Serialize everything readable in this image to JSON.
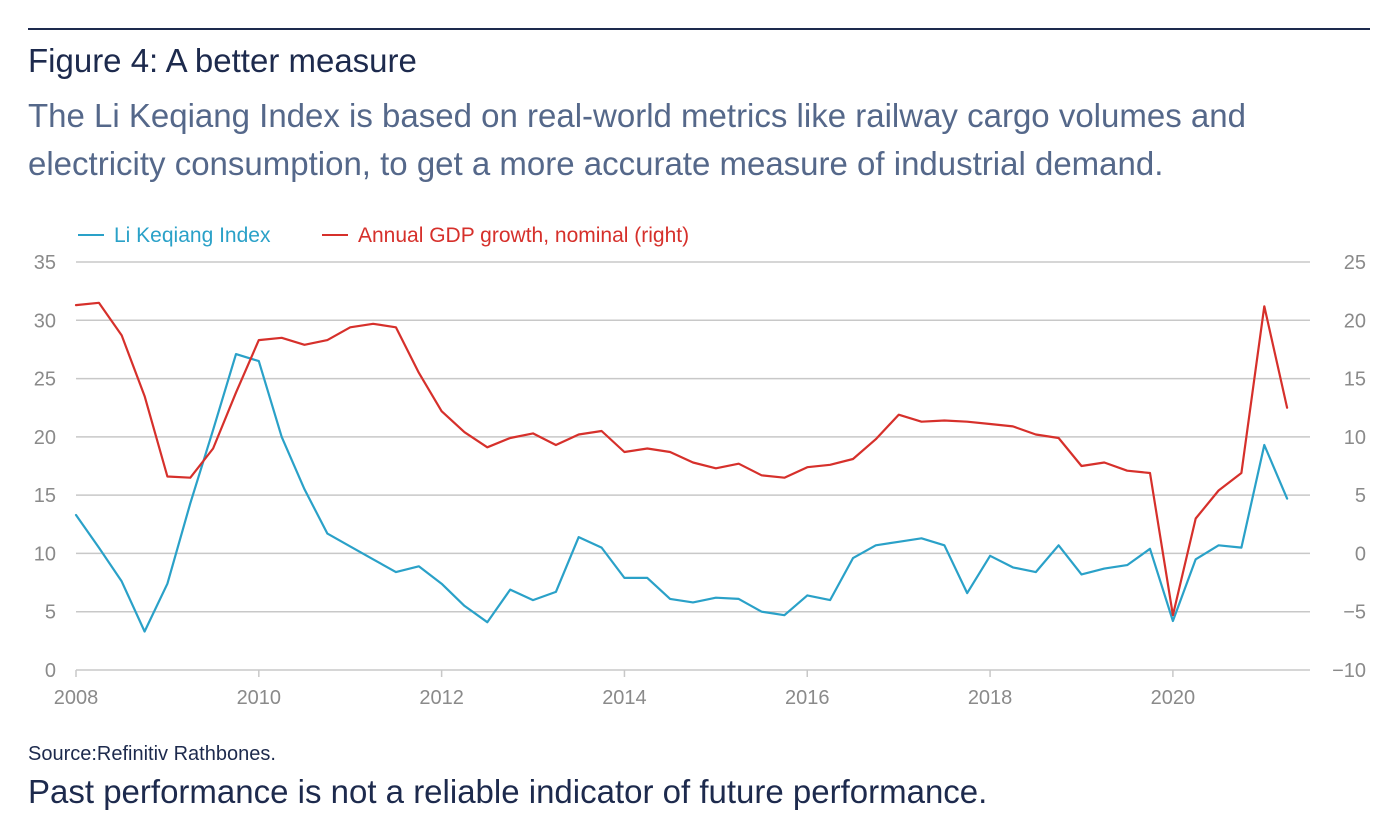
{
  "header": {
    "title": "Figure 4: A better measure",
    "subtitle": "The Li Keqiang Index is based on real-world metrics like railway cargo volumes and electricity consumption, to get a more accurate measure of industrial demand."
  },
  "footer": {
    "source": "Source:Refinitiv Rathbones.",
    "disclaimer": "Past performance is not a reliable indicator of future performance."
  },
  "colors": {
    "title": "#1d2a4d",
    "subtitle": "#55688a",
    "axis_text": "#8a8a8a",
    "grid": "#c8c8c8",
    "series_blue": "#2aa1c8",
    "series_red": "#d6302b"
  },
  "chart_data": {
    "type": "line",
    "title": "",
    "xlabel": "",
    "ylabel": "",
    "xlim": [
      2008,
      2021.5
    ],
    "ylim_left": [
      0,
      35
    ],
    "ylim_right": [
      -10,
      25
    ],
    "left_ticks": [
      0,
      5,
      10,
      15,
      20,
      25,
      30,
      35
    ],
    "right_ticks": [
      -10,
      -5,
      0,
      5,
      10,
      15,
      20,
      25
    ],
    "x_ticks": [
      2008,
      2010,
      2012,
      2014,
      2016,
      2018,
      2020
    ],
    "grid": true,
    "legend_position": "top-left",
    "series": [
      {
        "name": "Li Keqiang Index",
        "axis": "left",
        "color": "#2aa1c8",
        "x": [
          2008.0,
          2008.25,
          2008.5,
          2008.75,
          2009.0,
          2009.25,
          2009.5,
          2009.75,
          2010.0,
          2010.25,
          2010.5,
          2010.75,
          2011.0,
          2011.25,
          2011.5,
          2011.75,
          2012.0,
          2012.25,
          2012.5,
          2012.75,
          2013.0,
          2013.25,
          2013.5,
          2013.75,
          2014.0,
          2014.25,
          2014.5,
          2014.75,
          2015.0,
          2015.25,
          2015.5,
          2015.75,
          2016.0,
          2016.25,
          2016.5,
          2016.75,
          2017.0,
          2017.25,
          2017.5,
          2017.75,
          2018.0,
          2018.25,
          2018.5,
          2018.75,
          2019.0,
          2019.25,
          2019.5,
          2019.75,
          2020.0,
          2020.25,
          2020.5,
          2020.75,
          2021.0,
          2021.25
        ],
        "values": [
          13.3,
          10.5,
          7.6,
          3.3,
          7.4,
          14.3,
          20.6,
          27.1,
          26.5,
          20.0,
          15.5,
          11.7,
          10.6,
          9.5,
          8.4,
          8.9,
          7.4,
          5.5,
          4.1,
          6.9,
          6.0,
          6.7,
          11.4,
          10.5,
          7.9,
          7.9,
          6.1,
          5.8,
          6.2,
          6.1,
          5.0,
          4.7,
          6.4,
          6.0,
          9.6,
          10.7,
          11.0,
          11.3,
          10.7,
          6.6,
          9.8,
          8.8,
          8.4,
          10.7,
          8.2,
          8.7,
          9.0,
          10.4,
          4.2,
          9.5,
          10.7,
          10.5,
          19.3,
          14.7
        ]
      },
      {
        "name": "Annual GDP growth, nominal (right)",
        "axis": "right",
        "color": "#d6302b",
        "x": [
          2008.0,
          2008.25,
          2008.5,
          2008.75,
          2009.0,
          2009.25,
          2009.5,
          2009.75,
          2010.0,
          2010.25,
          2010.5,
          2010.75,
          2011.0,
          2011.25,
          2011.5,
          2011.75,
          2012.0,
          2012.25,
          2012.5,
          2012.75,
          2013.0,
          2013.25,
          2013.5,
          2013.75,
          2014.0,
          2014.25,
          2014.5,
          2014.75,
          2015.0,
          2015.25,
          2015.5,
          2015.75,
          2016.0,
          2016.25,
          2016.5,
          2016.75,
          2017.0,
          2017.25,
          2017.5,
          2017.75,
          2018.0,
          2018.25,
          2018.5,
          2018.75,
          2019.0,
          2019.25,
          2019.5,
          2019.75,
          2020.0,
          2020.25,
          2020.5,
          2020.75,
          2021.0,
          2021.25
        ],
        "values": [
          21.3,
          21.5,
          18.7,
          13.5,
          6.6,
          6.5,
          9.0,
          13.8,
          18.3,
          18.5,
          17.9,
          18.3,
          19.4,
          19.7,
          19.4,
          15.5,
          12.2,
          10.4,
          9.1,
          9.9,
          10.3,
          9.3,
          10.2,
          10.5,
          8.7,
          9.0,
          8.7,
          7.8,
          7.3,
          7.7,
          6.7,
          6.5,
          7.4,
          7.6,
          8.1,
          9.8,
          11.9,
          11.3,
          11.4,
          11.3,
          11.1,
          10.9,
          10.2,
          9.9,
          7.5,
          7.8,
          7.1,
          6.9,
          -5.3,
          3.0,
          5.4,
          6.9,
          21.2,
          12.5
        ]
      }
    ]
  }
}
